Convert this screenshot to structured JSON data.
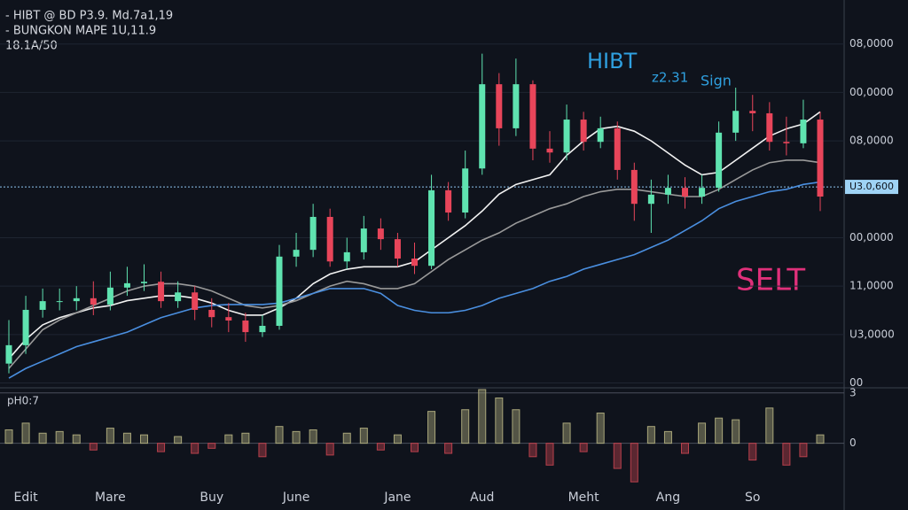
{
  "chart_data": {
    "type": "candlestick",
    "header": [
      "- HIBT @ BD P3.9. Md.7a1,19",
      "- BUNGKON MAPE 1U,11.9",
      "18.1A/50"
    ],
    "annotations": {
      "sign": [
        "HIBT",
        "z2.31",
        "Sign"
      ],
      "sell": "SELT"
    },
    "up_color": "#5fe3b0",
    "down_color": "#e8455a",
    "ylim": [
      -0.1,
      7.8
    ],
    "yticks": [
      {
        "value": 7,
        "label": "08,0000"
      },
      {
        "value": 6,
        "label": "00,0000"
      },
      {
        "value": 5,
        "label": "08,0000"
      },
      {
        "value": 3,
        "label": "00,0000"
      },
      {
        "value": 2,
        "label": "11,0000"
      },
      {
        "value": 1,
        "label": "U3,0000"
      },
      {
        "value": 0,
        "label": "00"
      }
    ],
    "grid": true,
    "price_line": {
      "value": 4.05,
      "label": "U3.0,600"
    },
    "categories": [
      null,
      "Edit",
      null,
      null,
      null,
      null,
      "Mare",
      null,
      null,
      null,
      null,
      null,
      "Buy",
      null,
      null,
      null,
      null,
      "June",
      null,
      null,
      null,
      null,
      null,
      "Jane",
      null,
      null,
      null,
      null,
      "Aud",
      null,
      null,
      null,
      null,
      null,
      "Meht",
      null,
      null,
      null,
      null,
      "Ang",
      null,
      null,
      null,
      null,
      "So",
      null,
      null,
      null,
      null
    ],
    "open": [
      0.4,
      0.78,
      1.51,
      1.69,
      1.69,
      1.75,
      1.62,
      1.97,
      2.06,
      2.09,
      1.69,
      1.87,
      1.51,
      1.36,
      1.29,
      1.05,
      1.18,
      2.61,
      2.75,
      3.43,
      2.51,
      2.7,
      3.19,
      2.97,
      2.57,
      2.42,
      3.98,
      3.52,
      4.43,
      6.17,
      5.26,
      6.17,
      4.84,
      4.76,
      5.44,
      4.98,
      5.26,
      4.4,
      3.7,
      3.89,
      4.03,
      3.85,
      4.03,
      5.17,
      5.62,
      5.57,
      4.98,
      4.95,
      5.44
    ],
    "high": [
      1.3,
      1.8,
      1.95,
      1.95,
      2.0,
      2.1,
      2.3,
      2.4,
      2.45,
      2.3,
      2.1,
      2.0,
      1.75,
      1.65,
      1.45,
      1.4,
      2.85,
      3.1,
      3.7,
      3.6,
      3.0,
      3.45,
      3.4,
      3.1,
      2.9,
      4.3,
      4.15,
      4.8,
      6.8,
      6.4,
      6.7,
      6.25,
      5.2,
      5.75,
      5.6,
      5.5,
      5.4,
      4.55,
      4.2,
      4.3,
      4.25,
      4.3,
      5.4,
      6.1,
      5.95,
      5.8,
      5.5,
      5.85,
      5.6
    ],
    "low": [
      0.2,
      0.6,
      1.35,
      1.5,
      1.5,
      1.4,
      1.5,
      1.8,
      1.9,
      1.55,
      1.55,
      1.3,
      1.15,
      1.05,
      0.85,
      0.95,
      1.1,
      2.4,
      2.6,
      2.4,
      2.35,
      2.55,
      2.75,
      2.4,
      2.25,
      2.35,
      3.35,
      3.4,
      4.3,
      4.9,
      5.1,
      4.6,
      4.55,
      4.6,
      4.8,
      4.85,
      4.2,
      3.35,
      3.1,
      3.7,
      3.6,
      3.7,
      3.95,
      5.0,
      5.2,
      4.8,
      4.7,
      4.85,
      3.55
    ],
    "close": [
      0.78,
      1.51,
      1.69,
      1.69,
      1.75,
      1.62,
      1.97,
      2.06,
      2.09,
      1.69,
      1.87,
      1.51,
      1.36,
      1.29,
      1.05,
      1.18,
      2.61,
      2.75,
      3.43,
      2.51,
      2.7,
      3.19,
      2.97,
      2.57,
      2.42,
      3.98,
      3.52,
      4.43,
      6.17,
      5.26,
      6.17,
      4.84,
      4.76,
      5.44,
      4.98,
      5.26,
      4.4,
      3.7,
      3.89,
      4.03,
      3.85,
      4.03,
      5.17,
      5.62,
      5.57,
      4.98,
      4.95,
      5.44,
      3.85
    ],
    "series": [
      {
        "color": "#f2f2f2",
        "values": [
          0.5,
          0.9,
          1.2,
          1.35,
          1.45,
          1.55,
          1.6,
          1.7,
          1.75,
          1.8,
          1.8,
          1.75,
          1.65,
          1.5,
          1.4,
          1.4,
          1.55,
          1.75,
          2.05,
          2.25,
          2.35,
          2.4,
          2.4,
          2.4,
          2.5,
          2.75,
          3.0,
          3.25,
          3.55,
          3.9,
          4.1,
          4.2,
          4.3,
          4.7,
          5.0,
          5.25,
          5.3,
          5.2,
          5.0,
          4.75,
          4.5,
          4.3,
          4.35,
          4.6,
          4.85,
          5.1,
          5.25,
          5.35,
          5.6
        ]
      },
      {
        "color": "#9a9a9a",
        "values": [
          0.3,
          0.7,
          1.1,
          1.3,
          1.45,
          1.6,
          1.75,
          1.9,
          2.0,
          2.05,
          2.05,
          2.0,
          1.9,
          1.75,
          1.6,
          1.55,
          1.6,
          1.7,
          1.85,
          2.0,
          2.1,
          2.05,
          1.95,
          1.95,
          2.05,
          2.3,
          2.55,
          2.75,
          2.95,
          3.1,
          3.3,
          3.45,
          3.6,
          3.7,
          3.85,
          3.95,
          4.0,
          4.0,
          3.95,
          3.9,
          3.85,
          3.85,
          4.0,
          4.2,
          4.4,
          4.55,
          4.6,
          4.6,
          4.55
        ]
      },
      {
        "color": "#4a8fe0",
        "values": [
          0.1,
          0.3,
          0.45,
          0.6,
          0.75,
          0.85,
          0.95,
          1.05,
          1.2,
          1.35,
          1.45,
          1.55,
          1.6,
          1.62,
          1.62,
          1.62,
          1.65,
          1.75,
          1.85,
          1.95,
          1.95,
          1.95,
          1.85,
          1.6,
          1.5,
          1.45,
          1.45,
          1.5,
          1.6,
          1.75,
          1.85,
          1.95,
          2.1,
          2.2,
          2.35,
          2.45,
          2.55,
          2.65,
          2.8,
          2.95,
          3.15,
          3.35,
          3.6,
          3.75,
          3.85,
          3.95,
          4.0,
          4.1,
          4.15
        ]
      }
    ],
    "subpanel": {
      "label": "pH0:7",
      "ylim": [
        -2.5,
        3.2
      ],
      "yticks": [
        3,
        0
      ],
      "up_color": "#a8a67a",
      "down_color": "#b8404c",
      "values": [
        0.8,
        1.2,
        0.6,
        0.7,
        0.5,
        -0.4,
        0.9,
        0.6,
        0.5,
        -0.5,
        0.4,
        -0.6,
        -0.3,
        0.5,
        0.6,
        -0.8,
        1.0,
        0.7,
        0.8,
        -0.7,
        0.6,
        0.9,
        -0.4,
        0.5,
        -0.5,
        1.9,
        -0.6,
        2.0,
        3.2,
        2.7,
        2.0,
        -0.8,
        -1.3,
        1.2,
        -0.5,
        1.8,
        -1.5,
        -2.3,
        1.0,
        0.7,
        -0.6,
        1.2,
        1.5,
        1.4,
        -1.0,
        2.1,
        -1.3,
        -0.8,
        0.5
      ]
    }
  }
}
